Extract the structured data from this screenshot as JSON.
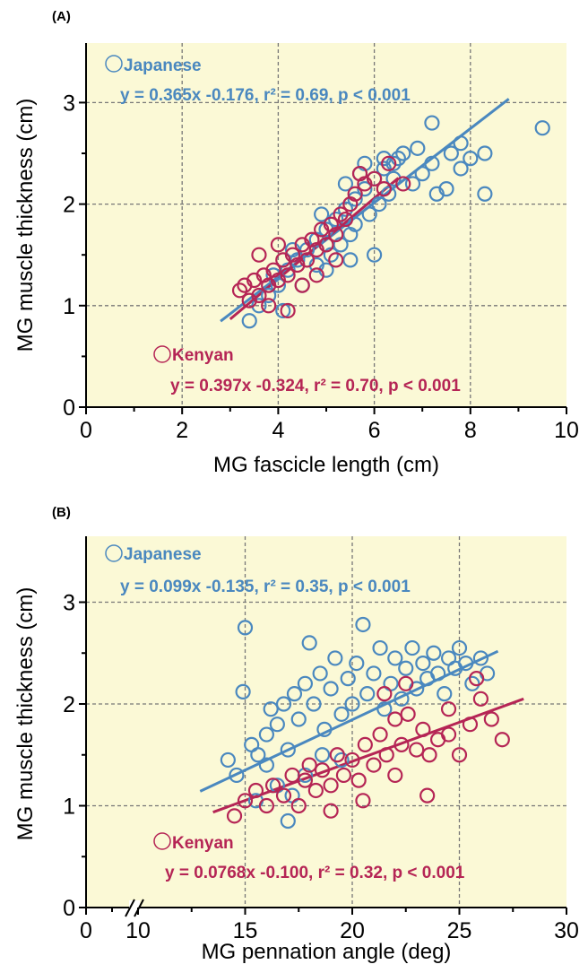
{
  "colors": {
    "japanese": "#4a88bf",
    "kenyan": "#b52555",
    "plot_bg": "#fbf9d6"
  },
  "chart_data": [
    {
      "type": "scatter",
      "panel_label": "(A)",
      "xlabel": "MG fascicle length (cm)",
      "ylabel": "MG muscle thickness (cm)",
      "xlim": [
        0,
        10
      ],
      "ylim": [
        0,
        3.5
      ],
      "x_ticks": [
        "0",
        "2",
        "4",
        "6",
        "8",
        "10"
      ],
      "y_ticks": [
        "0",
        "1",
        "2",
        "3"
      ],
      "grid": true,
      "series": [
        {
          "name": "Japanese",
          "legend_label": "Japanese",
          "equation": "y = 0.365x -0.176, r² = 0.69, p < 0.001",
          "slope": 0.365,
          "intercept": -0.176,
          "fit_range": [
            2.8,
            8.8
          ],
          "points": [
            [
              3.4,
              0.85
            ],
            [
              3.6,
              1.0
            ],
            [
              3.8,
              1.1
            ],
            [
              4.0,
              1.2
            ],
            [
              4.2,
              1.35
            ],
            [
              4.4,
              1.45
            ],
            [
              4.6,
              1.55
            ],
            [
              4.8,
              1.65
            ],
            [
              5.0,
              1.75
            ],
            [
              5.2,
              1.85
            ],
            [
              5.4,
              1.95
            ],
            [
              5.6,
              2.05
            ],
            [
              5.8,
              2.15
            ],
            [
              6.0,
              2.25
            ],
            [
              6.2,
              2.35
            ],
            [
              6.4,
              2.4
            ],
            [
              6.6,
              2.5
            ],
            [
              6.0,
              1.5
            ],
            [
              5.5,
              1.7
            ],
            [
              5.8,
              2.4
            ],
            [
              6.5,
              2.45
            ],
            [
              7.0,
              2.3
            ],
            [
              7.2,
              2.4
            ],
            [
              7.5,
              2.15
            ],
            [
              7.6,
              2.5
            ],
            [
              7.8,
              2.35
            ],
            [
              8.0,
              2.45
            ],
            [
              7.3,
              2.1
            ],
            [
              6.8,
              2.2
            ],
            [
              6.3,
              2.1
            ],
            [
              8.3,
              2.5
            ],
            [
              8.3,
              2.1
            ],
            [
              7.2,
              2.8
            ],
            [
              9.5,
              2.75
            ],
            [
              4.5,
              1.2
            ],
            [
              4.8,
              1.4
            ],
            [
              5.1,
              1.5
            ],
            [
              5.3,
              1.6
            ],
            [
              5.6,
              1.8
            ],
            [
              5.9,
              1.9
            ],
            [
              6.1,
              2.0
            ],
            [
              4.3,
              1.55
            ],
            [
              4.9,
              1.9
            ],
            [
              5.4,
              2.2
            ],
            [
              5.7,
              2.3
            ],
            [
              6.2,
              2.45
            ],
            [
              3.9,
              1.3
            ],
            [
              4.1,
              0.95
            ],
            [
              5.0,
              1.35
            ],
            [
              5.5,
              1.45
            ],
            [
              6.4,
              2.25
            ],
            [
              6.9,
              2.55
            ],
            [
              7.8,
              2.6
            ]
          ]
        },
        {
          "name": "Kenyan",
          "legend_label": "Kenyan",
          "equation": "y = 0.397x -0.324, r² = 0.70, p < 0.001",
          "slope": 0.397,
          "intercept": -0.324,
          "fit_range": [
            3.0,
            6.5
          ],
          "points": [
            [
              3.2,
              1.15
            ],
            [
              3.4,
              1.05
            ],
            [
              3.5,
              1.25
            ],
            [
              3.6,
              1.1
            ],
            [
              3.7,
              1.3
            ],
            [
              3.8,
              1.2
            ],
            [
              3.9,
              1.35
            ],
            [
              4.0,
              1.25
            ],
            [
              4.1,
              1.45
            ],
            [
              4.2,
              1.3
            ],
            [
              4.3,
              1.5
            ],
            [
              4.4,
              1.4
            ],
            [
              4.5,
              1.6
            ],
            [
              4.6,
              1.45
            ],
            [
              4.7,
              1.65
            ],
            [
              4.8,
              1.55
            ],
            [
              4.9,
              1.75
            ],
            [
              5.0,
              1.6
            ],
            [
              5.1,
              1.8
            ],
            [
              5.2,
              1.7
            ],
            [
              5.3,
              1.9
            ],
            [
              5.4,
              1.85
            ],
            [
              5.5,
              2.0
            ],
            [
              5.6,
              2.1
            ],
            [
              5.8,
              2.2
            ],
            [
              6.0,
              2.25
            ],
            [
              6.3,
              2.4
            ],
            [
              6.6,
              2.2
            ],
            [
              3.3,
              1.2
            ],
            [
              3.6,
              1.5
            ],
            [
              4.0,
              1.6
            ],
            [
              4.5,
              1.2
            ],
            [
              4.2,
              0.95
            ],
            [
              5.7,
              2.3
            ],
            [
              6.2,
              2.15
            ],
            [
              3.8,
              1.0
            ],
            [
              4.8,
              1.3
            ],
            [
              5.2,
              1.45
            ]
          ]
        }
      ]
    },
    {
      "type": "scatter",
      "panel_label": "(B)",
      "xlabel": "MG pennation angle (deg)",
      "ylabel": "MG muscle thickness (cm)",
      "xlim": [
        0,
        30
      ],
      "ylim": [
        0,
        3.5
      ],
      "x_ticks": [
        "0",
        "10",
        "15",
        "20",
        "25",
        "30"
      ],
      "y_ticks": [
        "0",
        "1",
        "2",
        "3"
      ],
      "axis_break": true,
      "grid": true,
      "series": [
        {
          "name": "Japanese",
          "legend_label": "Japanese",
          "equation": "y = 0.099x -0.135, r² = 0.35, p < 0.001",
          "slope": 0.099,
          "intercept": -0.135,
          "fit_range": [
            12.9,
            26.8
          ],
          "points": [
            [
              14.2,
              1.45
            ],
            [
              14.6,
              1.3
            ],
            [
              15.0,
              2.75
            ],
            [
              14.9,
              2.12
            ],
            [
              15.3,
              1.6
            ],
            [
              15.6,
              1.5
            ],
            [
              16.0,
              1.7
            ],
            [
              16.2,
              1.95
            ],
            [
              16.5,
              1.8
            ],
            [
              16.8,
              2.0
            ],
            [
              17.0,
              1.55
            ],
            [
              17.3,
              2.1
            ],
            [
              17.5,
              1.85
            ],
            [
              17.8,
              2.2
            ],
            [
              18.0,
              2.6
            ],
            [
              18.2,
              2.0
            ],
            [
              18.5,
              2.3
            ],
            [
              18.7,
              1.75
            ],
            [
              19.0,
              2.15
            ],
            [
              19.2,
              2.45
            ],
            [
              19.5,
              1.9
            ],
            [
              19.8,
              2.25
            ],
            [
              20.0,
              2.0
            ],
            [
              20.2,
              2.4
            ],
            [
              20.5,
              2.78
            ],
            [
              20.7,
              2.1
            ],
            [
              21.0,
              2.3
            ],
            [
              21.3,
              2.55
            ],
            [
              21.5,
              1.95
            ],
            [
              21.8,
              2.2
            ],
            [
              22.0,
              2.45
            ],
            [
              22.3,
              2.05
            ],
            [
              22.5,
              2.35
            ],
            [
              22.8,
              2.55
            ],
            [
              23.0,
              2.15
            ],
            [
              23.3,
              2.4
            ],
            [
              23.5,
              2.25
            ],
            [
              23.8,
              2.5
            ],
            [
              24.0,
              2.3
            ],
            [
              24.3,
              2.1
            ],
            [
              24.5,
              2.45
            ],
            [
              24.8,
              2.35
            ],
            [
              25.0,
              2.55
            ],
            [
              25.3,
              2.4
            ],
            [
              25.6,
              2.2
            ],
            [
              26.0,
              2.45
            ],
            [
              26.3,
              2.3
            ],
            [
              17.2,
              1.1
            ],
            [
              17.8,
              1.3
            ],
            [
              18.6,
              1.5
            ],
            [
              19.5,
              1.45
            ],
            [
              16.5,
              1.2
            ],
            [
              15.5,
              1.05
            ],
            [
              17.0,
              0.85
            ],
            [
              16.0,
              1.4
            ]
          ]
        },
        {
          "name": "Kenyan",
          "legend_label": "Kenyan",
          "equation": "y = 0.0768x -0.100, r² = 0.32, p < 0.001",
          "slope": 0.0768,
          "intercept": -0.1,
          "fit_range": [
            13.5,
            28.0
          ],
          "points": [
            [
              14.5,
              0.9
            ],
            [
              15.0,
              1.05
            ],
            [
              15.5,
              1.15
            ],
            [
              16.0,
              1.0
            ],
            [
              16.3,
              1.2
            ],
            [
              16.8,
              1.1
            ],
            [
              17.2,
              1.3
            ],
            [
              17.5,
              1.0
            ],
            [
              17.8,
              1.25
            ],
            [
              18.0,
              1.4
            ],
            [
              18.3,
              1.15
            ],
            [
              18.6,
              1.35
            ],
            [
              19.0,
              1.2
            ],
            [
              19.3,
              1.5
            ],
            [
              19.6,
              1.3
            ],
            [
              20.0,
              1.45
            ],
            [
              20.3,
              1.25
            ],
            [
              20.6,
              1.6
            ],
            [
              21.0,
              1.4
            ],
            [
              21.3,
              1.7
            ],
            [
              21.6,
              1.5
            ],
            [
              22.0,
              1.85
            ],
            [
              22.3,
              1.6
            ],
            [
              22.6,
              1.9
            ],
            [
              23.0,
              1.55
            ],
            [
              23.3,
              1.75
            ],
            [
              23.6,
              1.5
            ],
            [
              24.0,
              1.65
            ],
            [
              24.5,
              1.7
            ],
            [
              25.0,
              1.5
            ],
            [
              25.5,
              1.8
            ],
            [
              25.8,
              2.25
            ],
            [
              26.0,
              2.05
            ],
            [
              26.5,
              1.85
            ],
            [
              27.0,
              1.65
            ],
            [
              21.5,
              2.1
            ],
            [
              22.0,
              1.3
            ],
            [
              20.5,
              1.05
            ],
            [
              19.0,
              0.95
            ],
            [
              23.5,
              1.1
            ],
            [
              24.5,
              1.95
            ],
            [
              22.5,
              2.2
            ]
          ]
        }
      ]
    }
  ]
}
